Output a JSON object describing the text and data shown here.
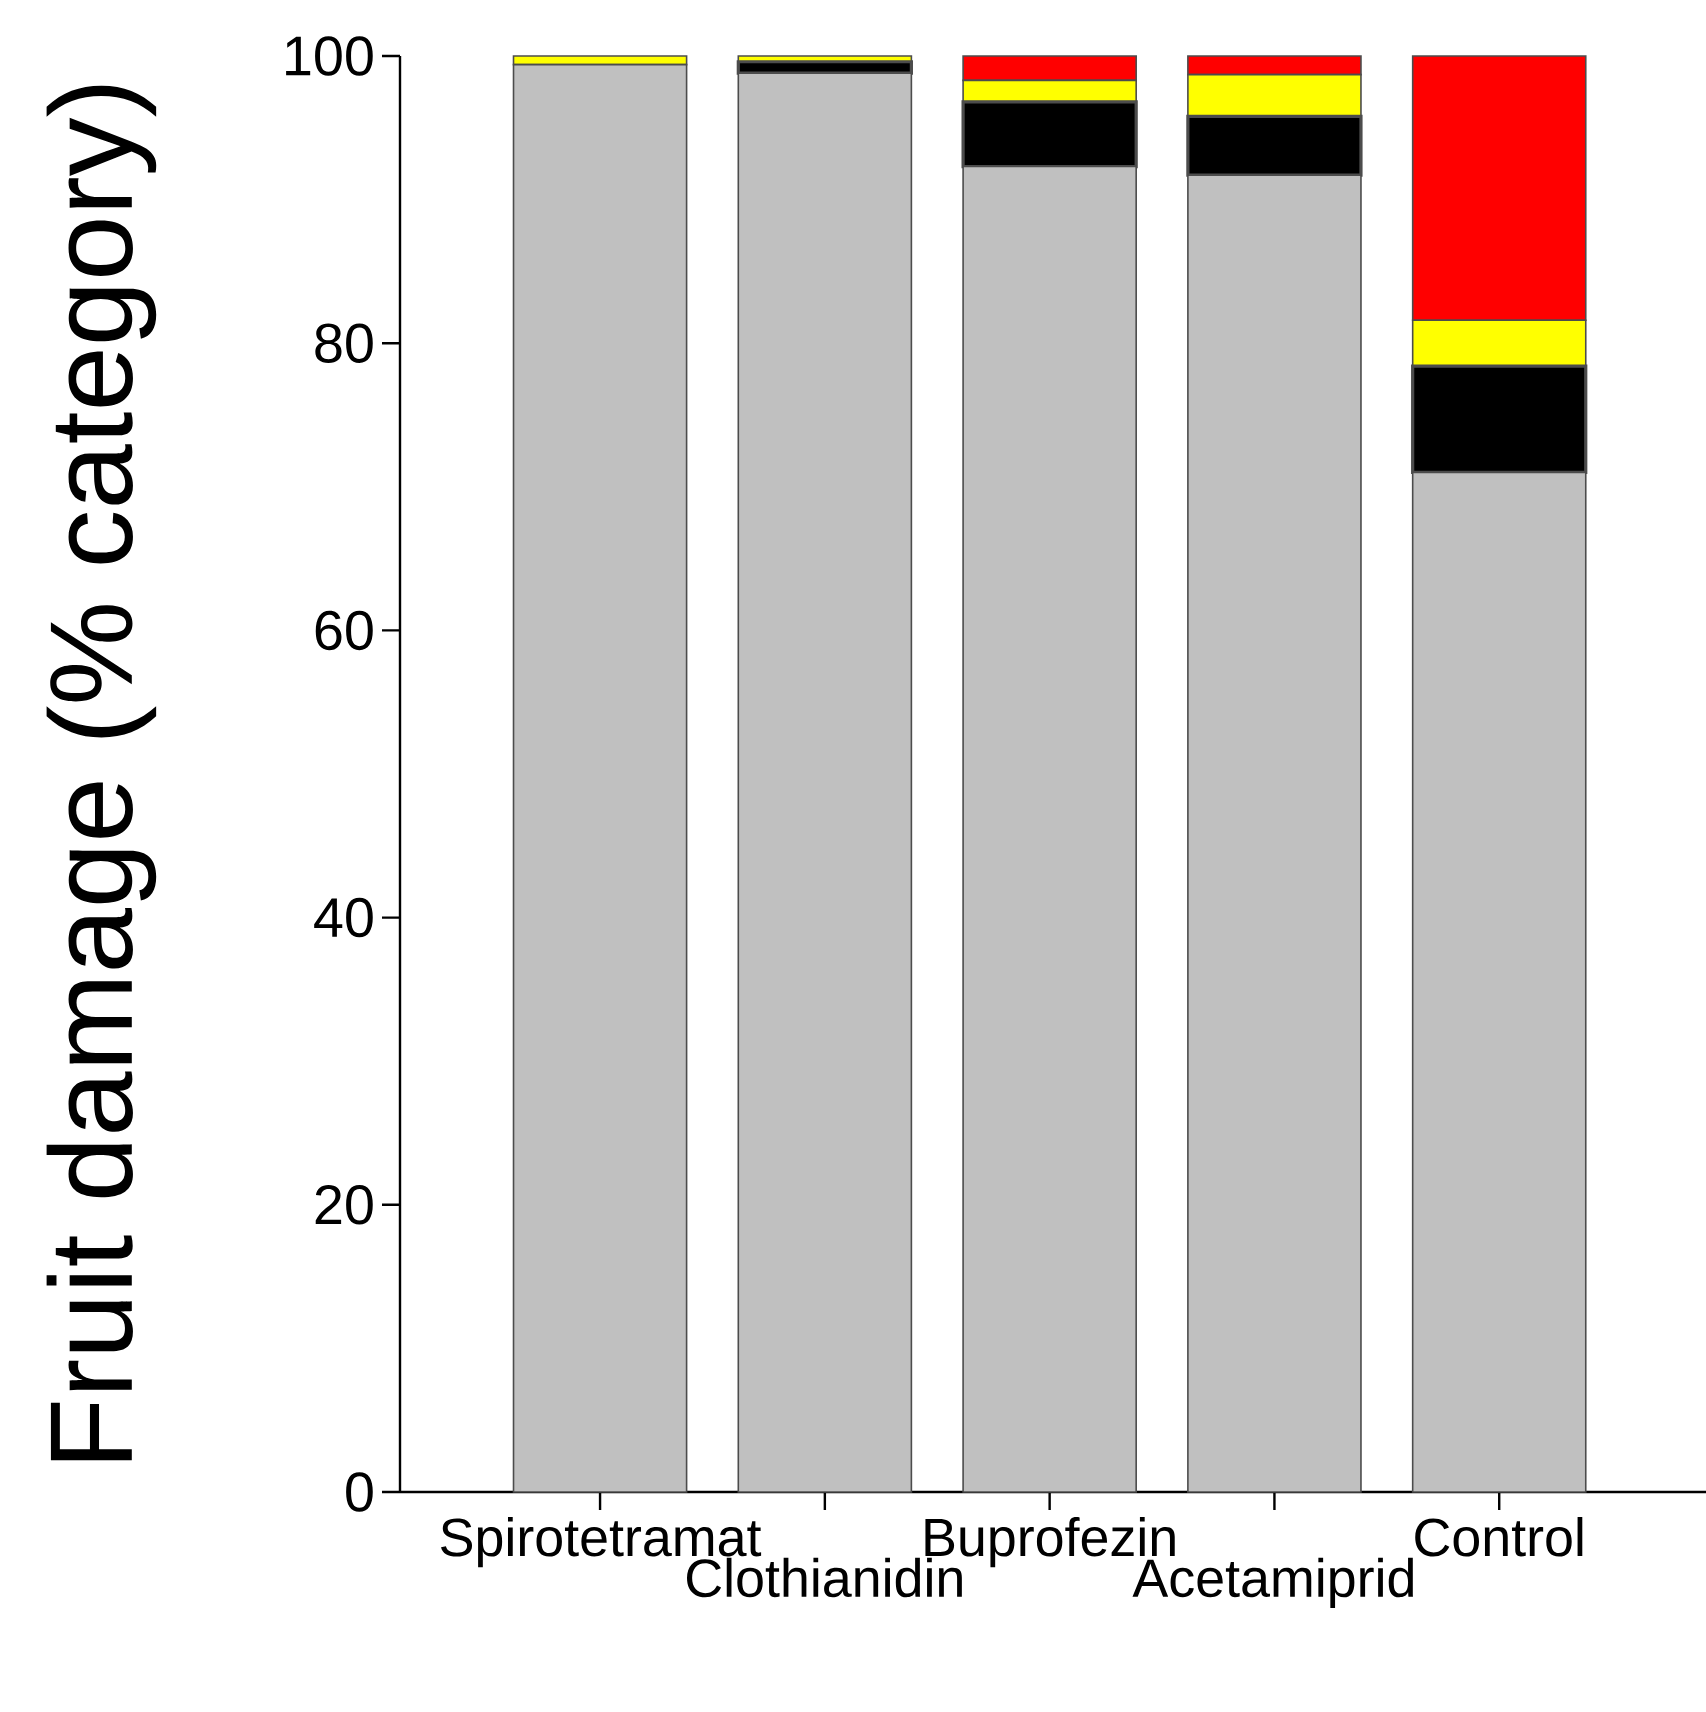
{
  "chart_data": {
    "type": "bar",
    "stacked": true,
    "ylabel": "Fruit damage (% category)",
    "categories": [
      "Spirotetramat",
      "Clothianidin",
      "Buprofezin",
      "Acetamiprid",
      "Control"
    ],
    "series": [
      {
        "color": "#c0c0c0",
        "values": [
          99.4,
          98.8,
          92.3,
          91.7,
          71.0
        ]
      },
      {
        "color": "#000000",
        "values": [
          0,
          0.8,
          4.5,
          4.1,
          7.4
        ]
      },
      {
        "color": "#ffff00",
        "values": [
          0.6,
          0.4,
          1.5,
          2.9,
          3.2
        ]
      },
      {
        "color": "#ff0000",
        "values": [
          0,
          0,
          1.7,
          1.3,
          18.4
        ]
      }
    ],
    "ylim": [
      0,
      100
    ],
    "yticks": [
      0,
      20,
      40,
      60,
      80,
      100
    ],
    "grid": false
  }
}
